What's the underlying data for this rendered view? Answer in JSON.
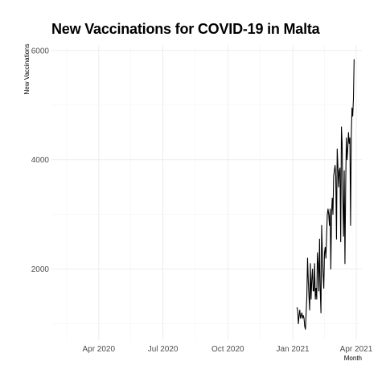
{
  "chart_data": {
    "type": "line",
    "title": "New Vaccinations for COVID-19 in Malta",
    "xlabel": "Month",
    "ylabel": "New Vaccinations",
    "xlim": [
      "2020-01-25",
      "2021-04-09"
    ],
    "ylim": [
      700,
      6100
    ],
    "x_ticks": [
      {
        "date": "2020-04-01",
        "label": "Apr 2020"
      },
      {
        "date": "2020-07-01",
        "label": "Jul 2020"
      },
      {
        "date": "2020-10-01",
        "label": "Oct 2020"
      },
      {
        "date": "2021-01-01",
        "label": "Jan 2021"
      },
      {
        "date": "2021-04-01",
        "label": "Apr 2021"
      }
    ],
    "y_ticks": [
      2000,
      4000,
      6000
    ],
    "grid": true,
    "line_color": "#000000",
    "x": [
      "2021-01-07",
      "2021-01-08",
      "2021-01-09",
      "2021-01-10",
      "2021-01-11",
      "2021-01-12",
      "2021-01-13",
      "2021-01-14",
      "2021-01-15",
      "2021-01-16",
      "2021-01-17",
      "2021-01-18",
      "2021-01-19",
      "2021-01-20",
      "2021-01-21",
      "2021-01-22",
      "2021-01-23",
      "2021-01-24",
      "2021-01-25",
      "2021-01-26",
      "2021-01-27",
      "2021-01-28",
      "2021-01-29",
      "2021-01-30",
      "2021-01-31",
      "2021-02-01",
      "2021-02-02",
      "2021-02-03",
      "2021-02-04",
      "2021-02-05",
      "2021-02-06",
      "2021-02-07",
      "2021-02-08",
      "2021-02-09",
      "2021-02-10",
      "2021-02-11",
      "2021-02-12",
      "2021-02-13",
      "2021-02-14",
      "2021-02-15",
      "2021-02-16",
      "2021-02-17",
      "2021-02-18",
      "2021-02-19",
      "2021-02-20",
      "2021-02-21",
      "2021-02-22",
      "2021-02-23",
      "2021-02-24",
      "2021-02-25",
      "2021-02-26",
      "2021-02-27",
      "2021-02-28",
      "2021-03-01",
      "2021-03-02",
      "2021-03-03",
      "2021-03-04",
      "2021-03-05",
      "2021-03-06",
      "2021-03-07",
      "2021-03-08",
      "2021-03-09",
      "2021-03-10",
      "2021-03-11",
      "2021-03-12",
      "2021-03-13",
      "2021-03-14",
      "2021-03-15",
      "2021-03-16",
      "2021-03-17",
      "2021-03-18",
      "2021-03-19",
      "2021-03-20",
      "2021-03-21",
      "2021-03-22",
      "2021-03-23",
      "2021-03-24",
      "2021-03-25",
      "2021-03-26",
      "2021-03-27",
      "2021-03-28",
      "2021-03-29"
    ],
    "values": [
      1300,
      1250,
      1000,
      1150,
      1250,
      1100,
      1150,
      1200,
      1100,
      1150,
      1100,
      950,
      900,
      1200,
      1500,
      2200,
      1800,
      1500,
      1250,
      2100,
      1450,
      1800,
      2000,
      1600,
      1600,
      2100,
      1450,
      1650,
      1450,
      2300,
      2100,
      1600,
      2550,
      1600,
      1200,
      2800,
      2300,
      1900,
      1650,
      2300,
      2400,
      2200,
      2600,
      3000,
      3100,
      3000,
      2800,
      3100,
      2000,
      3000,
      3300,
      3000,
      3700,
      3800,
      3900,
      3700,
      2550,
      4200,
      3900,
      3500,
      3800,
      3850,
      2500,
      4600,
      4300,
      3300,
      2600,
      3800,
      2100,
      3500,
      4400,
      4000,
      4200,
      4500,
      4300,
      4400,
      2800,
      4450,
      4950,
      4800,
      5100,
      5840
    ]
  }
}
